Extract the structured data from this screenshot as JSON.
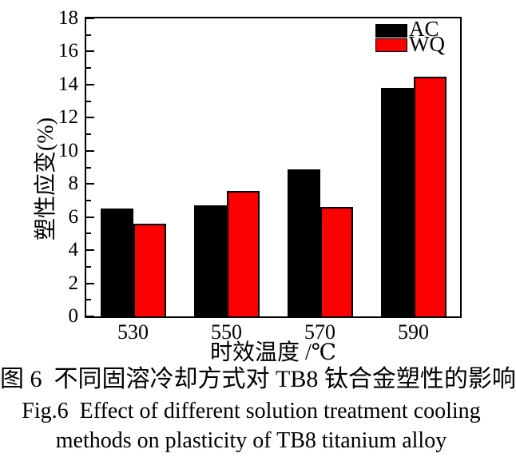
{
  "chart_data": {
    "type": "bar",
    "title": "",
    "categories": [
      "530",
      "550",
      "570",
      "590"
    ],
    "series": [
      {
        "name": "AC",
        "color": "#000000",
        "values": [
          6.5,
          6.7,
          8.9,
          13.8
        ]
      },
      {
        "name": "WQ",
        "color": "#fb0000",
        "values": [
          5.6,
          7.6,
          6.6,
          14.5
        ]
      }
    ],
    "xlabel": "时效温度 /℃",
    "ylabel": "塑性应变(%)",
    "ylim": [
      0,
      18
    ],
    "ytick_step": 2,
    "minor_tick_step": 1,
    "grid": false,
    "legend_position": "top-right"
  },
  "caption": {
    "chinese": "图 6  不同固溶冷却方式对 TB8 钛合金塑性的影响",
    "english_line1": "Fig.6  Effect of different solution treatment cooling",
    "english_line2": "methods on plasticity of TB8 titanium alloy"
  },
  "colors": {
    "axis": "#000000",
    "background": "#ffffff",
    "series_ac": "#000000",
    "series_wq": "#fb0000"
  }
}
